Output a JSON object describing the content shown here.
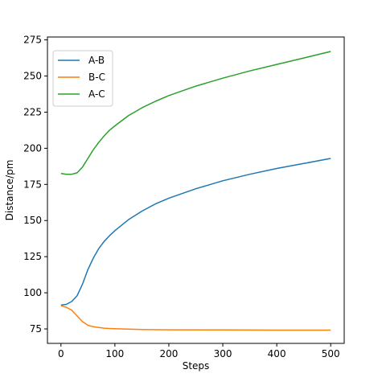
{
  "chart_data": {
    "type": "line",
    "xlabel": "Steps",
    "ylabel": "Distance/pm",
    "xlim": [
      -25,
      525
    ],
    "ylim": [
      65,
      277
    ],
    "xticks": [
      0,
      100,
      200,
      300,
      400,
      500
    ],
    "yticks": [
      75,
      100,
      125,
      150,
      175,
      200,
      225,
      250,
      275
    ],
    "grid": false,
    "legend": "top-left",
    "series": [
      {
        "name": "A-B",
        "color": "#1f77b4",
        "x": [
          0,
          10,
          20,
          30,
          40,
          50,
          60,
          70,
          80,
          90,
          100,
          125,
          150,
          175,
          200,
          250,
          300,
          350,
          400,
          450,
          500
        ],
        "y": [
          91.5,
          92,
          94,
          98,
          106,
          116,
          124,
          130.5,
          135.5,
          139.5,
          143,
          150.5,
          156.5,
          161.5,
          165.5,
          172,
          177.5,
          182,
          186,
          189.5,
          193
        ]
      },
      {
        "name": "B-C",
        "color": "#ff7f0e",
        "x": [
          0,
          10,
          20,
          30,
          40,
          50,
          60,
          70,
          80,
          90,
          100,
          150,
          200,
          300,
          400,
          500
        ],
        "y": [
          91,
          90,
          88,
          84,
          80,
          77.5,
          76.5,
          76,
          75.5,
          75.3,
          75.1,
          74.6,
          74.4,
          74.3,
          74.2,
          74.2
        ]
      },
      {
        "name": "A-C",
        "color": "#2ca02c",
        "x": [
          0,
          10,
          20,
          30,
          40,
          50,
          60,
          70,
          80,
          90,
          100,
          125,
          150,
          175,
          200,
          250,
          300,
          350,
          400,
          450,
          500
        ],
        "y": [
          182.5,
          182,
          182,
          183,
          187,
          193,
          199,
          204,
          208.5,
          212.5,
          215.5,
          222.5,
          228,
          232.5,
          236.5,
          243,
          248.5,
          253.5,
          258,
          262.5,
          267
        ]
      }
    ]
  }
}
